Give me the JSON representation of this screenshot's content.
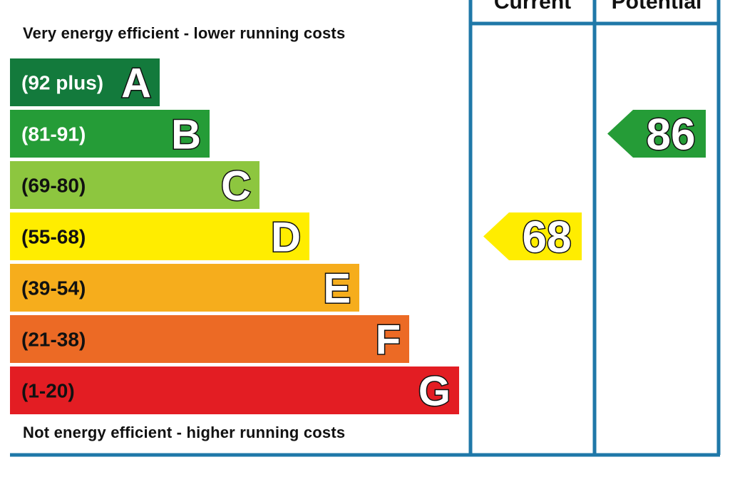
{
  "top_caption": "Very energy efficient - lower running costs",
  "bottom_caption": "Not energy efficient - higher running costs",
  "columns": {
    "current": "Current",
    "potential": "Potential"
  },
  "chart_data": {
    "type": "bar",
    "bands": [
      {
        "letter": "A",
        "range": "(92 plus)",
        "min": 92,
        "max": 100,
        "color": "#137a3c",
        "label_color": "#ffffff"
      },
      {
        "letter": "B",
        "range": "(81-91)",
        "min": 81,
        "max": 91,
        "color": "#259c37",
        "label_color": "#ffffff"
      },
      {
        "letter": "C",
        "range": "(69-80)",
        "min": 69,
        "max": 80,
        "color": "#8dc63f",
        "label_color": "#111111"
      },
      {
        "letter": "D",
        "range": "(55-68)",
        "min": 55,
        "max": 68,
        "color": "#ffed00",
        "label_color": "#111111"
      },
      {
        "letter": "E",
        "range": "(39-54)",
        "min": 39,
        "max": 54,
        "color": "#f6ad1c",
        "label_color": "#111111"
      },
      {
        "letter": "F",
        "range": "(21-38)",
        "min": 21,
        "max": 38,
        "color": "#ec6a25",
        "label_color": "#111111"
      },
      {
        "letter": "G",
        "range": "(1-20)",
        "min": 1,
        "max": 20,
        "color": "#e31d23",
        "label_color": "#111111"
      }
    ],
    "current": {
      "value": "68",
      "band": "D",
      "color": "#ffed00"
    },
    "potential": {
      "value": "86",
      "band": "B",
      "color": "#259c37"
    },
    "frame_color": "#1f78a8"
  }
}
